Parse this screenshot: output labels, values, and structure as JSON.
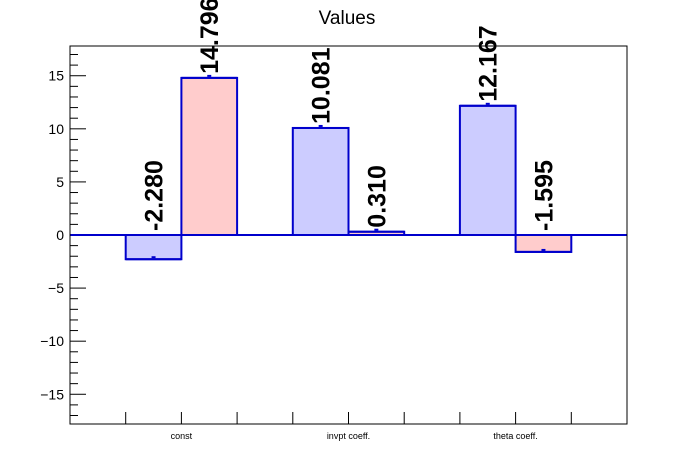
{
  "chart_data": {
    "type": "bar",
    "title": "Values",
    "xlabel": "",
    "ylabel": "",
    "categories": [
      "const",
      "invpt coeff.",
      "theta coeff."
    ],
    "series": [
      {
        "values": [
          -2.28,
          10.081,
          12.167
        ],
        "labels": [
          "-2.280",
          "10.081",
          "12.167"
        ],
        "fill": "#ccccff",
        "stroke": "#0000cc"
      },
      {
        "values": [
          14.796,
          0.31,
          -1.595
        ],
        "labels": [
          "14.796",
          "0.310",
          "-1.595"
        ],
        "fill": "#ffcccc",
        "stroke": "#0000cc"
      }
    ],
    "ylim": [
      -17.8,
      17.8
    ],
    "yticks": [
      -15,
      -10,
      -5,
      0,
      5,
      10,
      15
    ],
    "ytick_labels": [
      "−15",
      "−10",
      "−5",
      "0",
      "5",
      "10",
      "15"
    ],
    "grid": false,
    "legend": "none"
  }
}
